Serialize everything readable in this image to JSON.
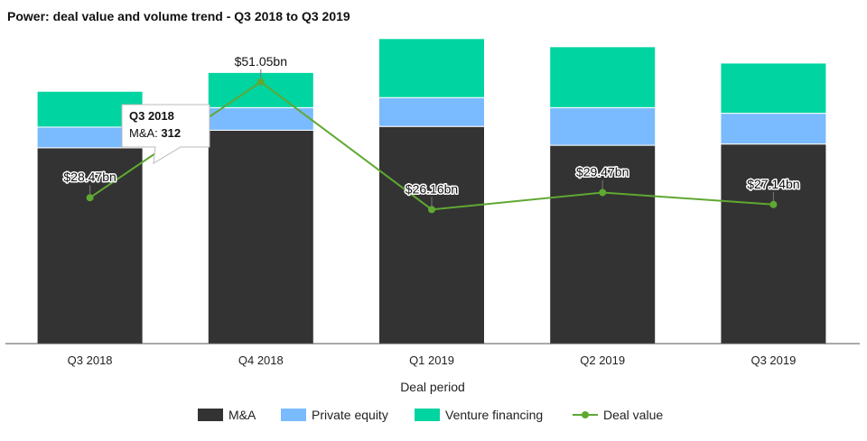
{
  "chart_data": {
    "type": "bar",
    "stacked": true,
    "title": "Power: deal value and volume trend - Q3 2018 to Q3 2019",
    "xlabel": "Deal period",
    "ylabel": "",
    "categories": [
      "Q3 2018",
      "Q4 2018",
      "Q1 2019",
      "Q2 2019",
      "Q3 2019"
    ],
    "series": [
      {
        "name": "M&A",
        "values": [
          312,
          340,
          346,
          316,
          318
        ],
        "color": "#333333"
      },
      {
        "name": "Private equity",
        "values": [
          33,
          36,
          46,
          60,
          49
        ],
        "color": "#7abaff"
      },
      {
        "name": "Venture financing",
        "values": [
          57,
          56,
          94,
          97,
          80
        ],
        "color": "#00d4a0"
      }
    ],
    "line_series": {
      "name": "Deal value",
      "values": [
        28.47,
        51.05,
        26.16,
        29.47,
        27.14
      ],
      "labels": [
        "$28.47bn",
        "$51.05bn",
        "$26.16bn",
        "$29.47bn",
        "$27.14bn"
      ],
      "color": "#5fa832"
    },
    "ylim_bars": [
      0,
      490
    ],
    "ylim_line": [
      0,
      60
    ],
    "grid": false,
    "legend_position": "bottom",
    "tooltip": {
      "category": "Q3 2018",
      "series_label": "M&A: ",
      "value": "312"
    }
  }
}
